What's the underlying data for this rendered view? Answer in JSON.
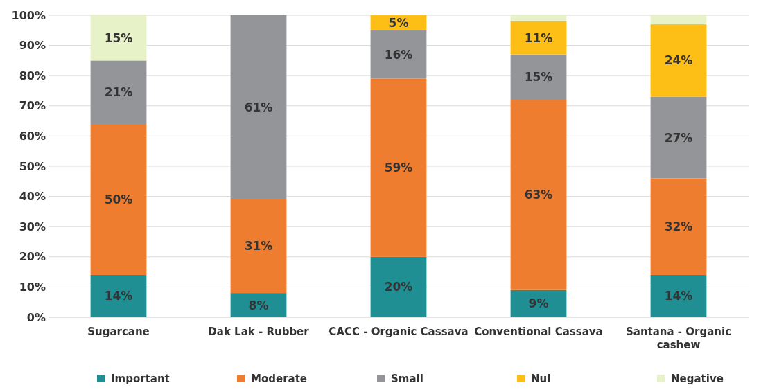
{
  "chart_data": {
    "type": "bar",
    "stacked": true,
    "categories": [
      "Sugarcane",
      "Dak Lak - Rubber",
      "CACC - Organic Cassava",
      "Conventional Cassava",
      "Santana - Organic cashew"
    ],
    "series": [
      {
        "name": "Important",
        "color": "#1f8f94",
        "values": [
          14,
          8,
          20,
          9,
          14
        ],
        "value_labels": [
          "14%",
          "8%",
          "20%",
          "9%",
          "14%"
        ]
      },
      {
        "name": "Moderate",
        "color": "#ee7d30",
        "values": [
          50,
          31,
          59,
          63,
          32
        ],
        "value_labels": [
          "50%",
          "31%",
          "59%",
          "63%",
          "32%"
        ]
      },
      {
        "name": "Small",
        "color": "#939598",
        "values": [
          21,
          61,
          16,
          15,
          27
        ],
        "value_labels": [
          "21%",
          "61%",
          "16%",
          "15%",
          "27%"
        ]
      },
      {
        "name": "Nul",
        "color": "#fdbf16",
        "values": [
          0,
          0,
          5,
          11,
          24
        ],
        "value_labels": [
          null,
          null,
          "5%",
          "11%",
          "24%"
        ]
      },
      {
        "name": "Negative",
        "color": "#e8f2c8",
        "values": [
          15,
          0,
          0,
          2,
          3
        ],
        "value_labels": [
          "15%",
          null,
          null,
          null,
          null
        ]
      }
    ],
    "ylim": [
      0,
      100
    ],
    "yticks": [
      {
        "value": 0,
        "label": "0%"
      },
      {
        "value": 10,
        "label": "10%"
      },
      {
        "value": 20,
        "label": "20%"
      },
      {
        "value": 30,
        "label": "30%"
      },
      {
        "value": 40,
        "label": "40%"
      },
      {
        "value": 50,
        "label": "50%"
      },
      {
        "value": 60,
        "label": "60%"
      },
      {
        "value": 70,
        "label": "70%"
      },
      {
        "value": 80,
        "label": "80%"
      },
      {
        "value": 90,
        "label": "90%"
      },
      {
        "value": 100,
        "label": "100%"
      }
    ],
    "grid": "y",
    "legend": "bottom"
  }
}
